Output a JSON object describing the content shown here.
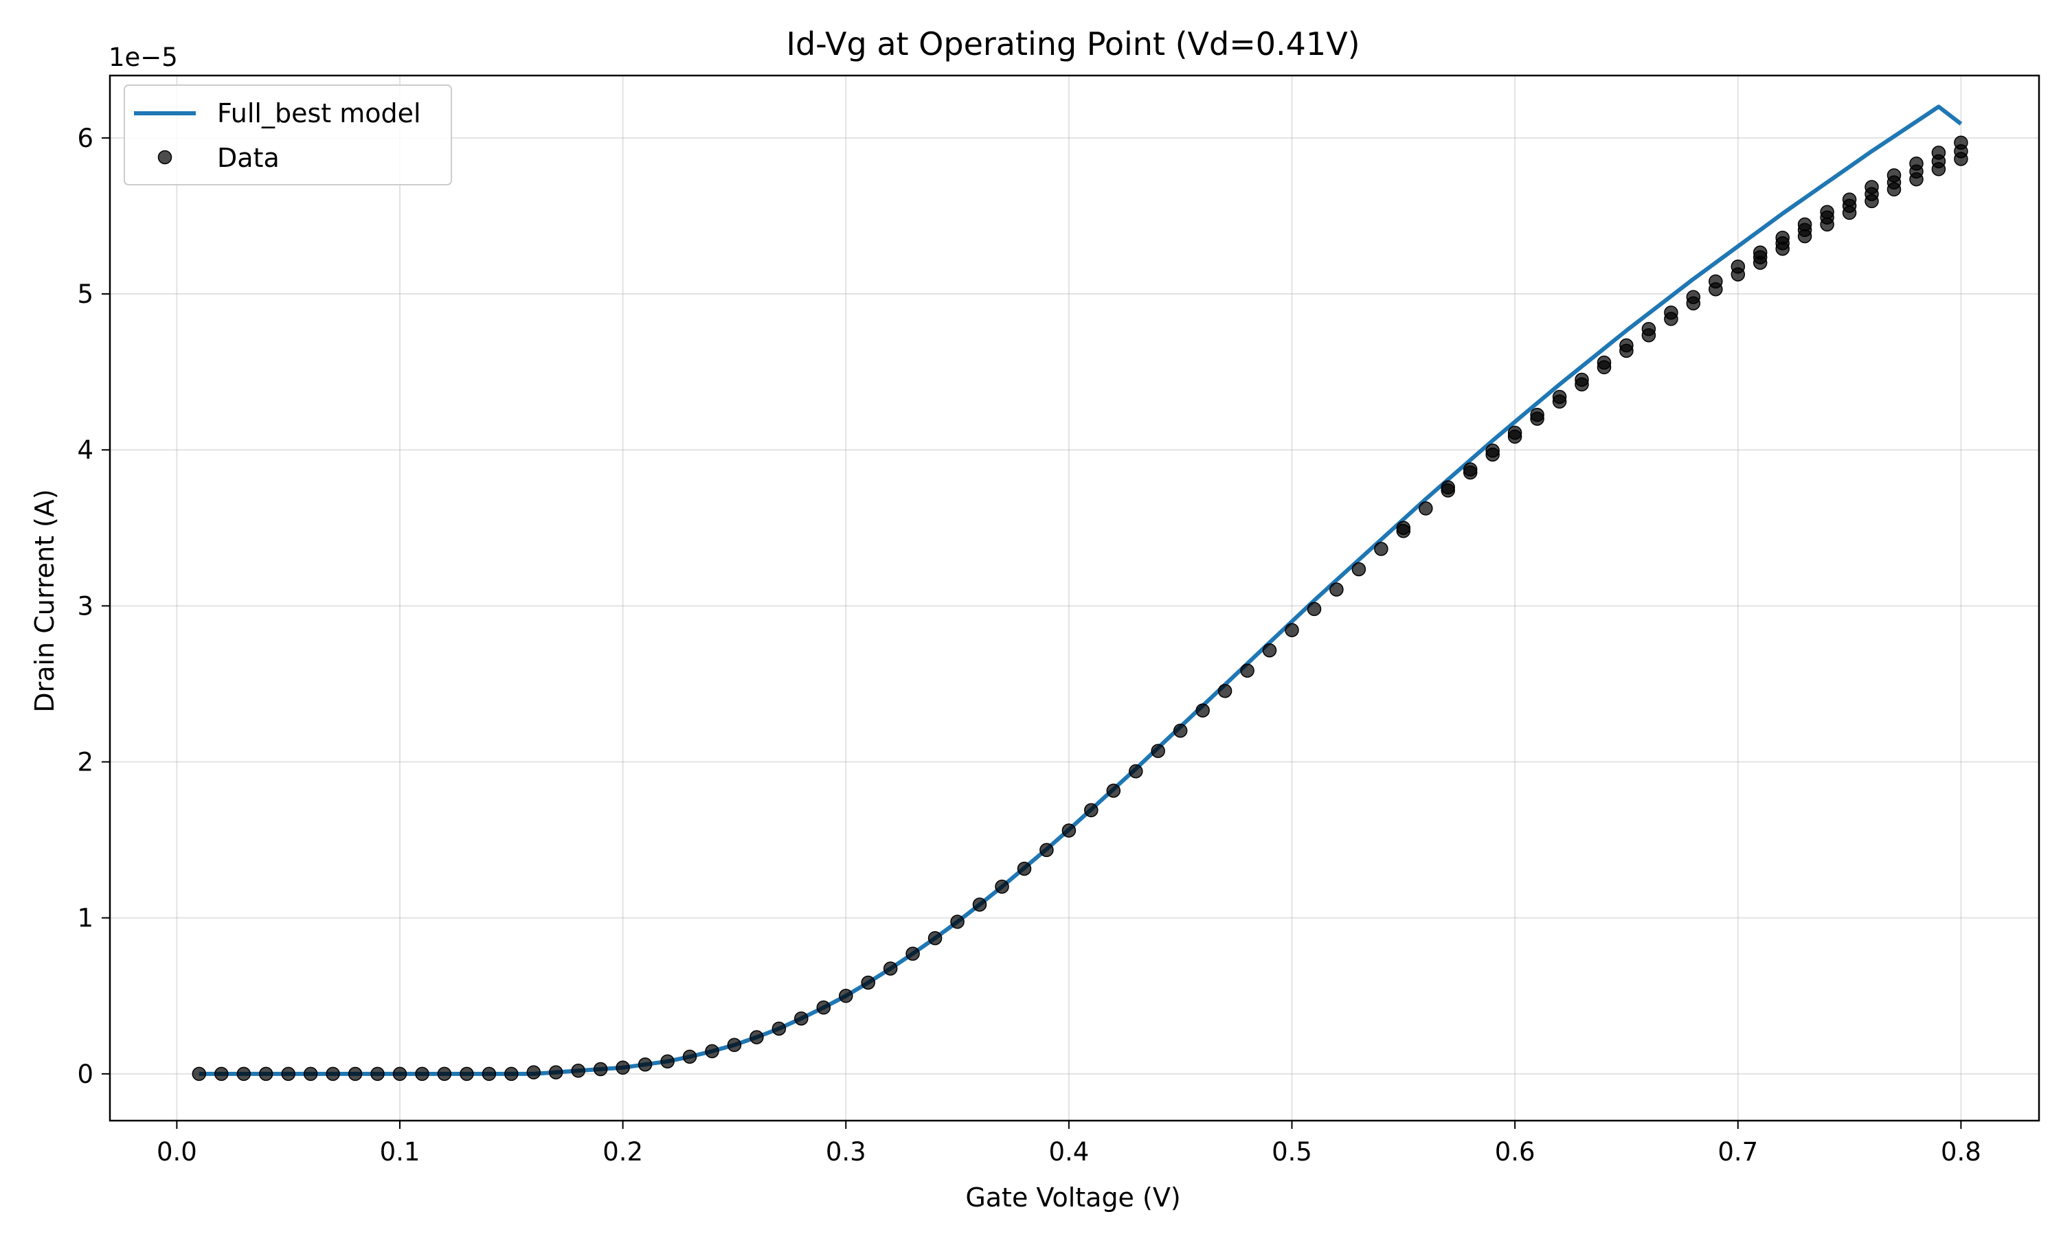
{
  "chart_data": {
    "type": "line",
    "title": "Id-Vg at Operating Point (Vd=0.41V)",
    "xlabel": "Gate Voltage (V)",
    "ylabel": "Drain Current (A)",
    "y_offset_text": "1e−5",
    "y_scale_factor": 1e-05,
    "xlim": [
      -0.03,
      0.835
    ],
    "ylim": [
      -3e-06,
      6.4e-05
    ],
    "xticks": [
      0.0,
      0.1,
      0.2,
      0.3,
      0.4,
      0.5,
      0.6,
      0.7,
      0.8
    ],
    "xtick_labels": [
      "0.0",
      "0.1",
      "0.2",
      "0.3",
      "0.4",
      "0.5",
      "0.6",
      "0.7",
      "0.8"
    ],
    "yticks": [
      0,
      1e-05,
      2e-05,
      3e-05,
      4e-05,
      5e-05,
      6e-05
    ],
    "ytick_labels": [
      "0",
      "1",
      "2",
      "3",
      "4",
      "5",
      "6"
    ],
    "grid": true,
    "legend": "upper-left",
    "series": [
      {
        "name": "Full_best model",
        "kind": "line",
        "color": "#1f77b4",
        "x": [
          0.01,
          0.02,
          0.03,
          0.04,
          0.05,
          0.06,
          0.07,
          0.08,
          0.09,
          0.1,
          0.11,
          0.12,
          0.13,
          0.14,
          0.15,
          0.16,
          0.17,
          0.18,
          0.19,
          0.2,
          0.21,
          0.22,
          0.23,
          0.24,
          0.25,
          0.26,
          0.27,
          0.28,
          0.29,
          0.3,
          0.31,
          0.32,
          0.33,
          0.34,
          0.35,
          0.36,
          0.37,
          0.38,
          0.39,
          0.4,
          0.41,
          0.42,
          0.43,
          0.44,
          0.45,
          0.46,
          0.47,
          0.48,
          0.49,
          0.5,
          0.51,
          0.52,
          0.53,
          0.54,
          0.55,
          0.56,
          0.57,
          0.58,
          0.59,
          0.6,
          0.61,
          0.62,
          0.63,
          0.64,
          0.65,
          0.66,
          0.67,
          0.68,
          0.69,
          0.7,
          0.71,
          0.72,
          0.73,
          0.74,
          0.75,
          0.76,
          0.77,
          0.78,
          0.79,
          0.8
        ],
        "y": [
          0.0,
          0.0,
          0.0,
          0.0,
          0.0,
          0.0,
          0.0,
          0.0,
          0.0,
          0.0,
          0.0,
          0.0,
          0.0,
          0.0,
          0.0,
          0.0,
          1e-07,
          2e-07,
          3e-07,
          4e-07,
          6e-07,
          8e-07,
          1.1e-06,
          1.45e-06,
          1.85e-06,
          2.35e-06,
          2.9e-06,
          3.55e-06,
          4.25e-06,
          5e-06,
          5.85e-06,
          6.75e-06,
          7.7e-06,
          8.7e-06,
          9.75e-06,
          1.085e-05,
          1.2e-05,
          1.32e-05,
          1.44e-05,
          1.565e-05,
          1.695e-05,
          1.825e-05,
          1.955e-05,
          2.09e-05,
          2.225e-05,
          2.36e-05,
          2.495e-05,
          2.63e-05,
          2.765e-05,
          2.9e-05,
          3.035e-05,
          3.165e-05,
          3.295e-05,
          3.425e-05,
          3.555e-05,
          3.685e-05,
          3.81e-05,
          3.935e-05,
          4.06e-05,
          4.18e-05,
          4.3e-05,
          4.42e-05,
          4.535e-05,
          4.65e-05,
          4.765e-05,
          4.875e-05,
          4.985e-05,
          5.095e-05,
          5.2e-05,
          5.305e-05,
          5.41e-05,
          5.515e-05,
          5.615e-05,
          5.715e-05,
          5.815e-05,
          5.915e-05,
          6.01e-05,
          6.105e-05,
          6.2e-05,
          6.09e-05
        ]
      },
      {
        "name": "Data",
        "kind": "scatter",
        "color": "#000000",
        "x": [
          0.01,
          0.02,
          0.03,
          0.04,
          0.05,
          0.06,
          0.07,
          0.08,
          0.09,
          0.1,
          0.11,
          0.12,
          0.13,
          0.14,
          0.15,
          0.16,
          0.17,
          0.18,
          0.19,
          0.2,
          0.21,
          0.22,
          0.23,
          0.24,
          0.25,
          0.26,
          0.27,
          0.28,
          0.29,
          0.3,
          0.31,
          0.32,
          0.33,
          0.34,
          0.35,
          0.36,
          0.37,
          0.38,
          0.39,
          0.4,
          0.41,
          0.42,
          0.43,
          0.44,
          0.45,
          0.46,
          0.47,
          0.48,
          0.49,
          0.5,
          0.51,
          0.52,
          0.53,
          0.54,
          0.55,
          0.55,
          0.56,
          0.57,
          0.57,
          0.58,
          0.58,
          0.59,
          0.59,
          0.6,
          0.6,
          0.61,
          0.61,
          0.62,
          0.62,
          0.63,
          0.63,
          0.64,
          0.64,
          0.65,
          0.65,
          0.66,
          0.66,
          0.67,
          0.67,
          0.68,
          0.68,
          0.69,
          0.69,
          0.7,
          0.7,
          0.71,
          0.71,
          0.71,
          0.72,
          0.72,
          0.72,
          0.73,
          0.73,
          0.73,
          0.74,
          0.74,
          0.74,
          0.75,
          0.75,
          0.75,
          0.76,
          0.76,
          0.76,
          0.77,
          0.77,
          0.77,
          0.78,
          0.78,
          0.78,
          0.79,
          0.79,
          0.79,
          0.8,
          0.8,
          0.8
        ],
        "y": [
          0.0,
          0.0,
          0.0,
          0.0,
          0.0,
          0.0,
          0.0,
          0.0,
          0.0,
          0.0,
          0.0,
          0.0,
          0.0,
          0.0,
          0.0,
          1e-07,
          1e-07,
          2e-07,
          3e-07,
          4e-07,
          6e-07,
          8e-07,
          1.1e-06,
          1.45e-06,
          1.85e-06,
          2.35e-06,
          2.9e-06,
          3.55e-06,
          4.25e-06,
          5e-06,
          5.85e-06,
          6.75e-06,
          7.7e-06,
          8.7e-06,
          9.75e-06,
          1.085e-05,
          1.2e-05,
          1.315e-05,
          1.435e-05,
          1.56e-05,
          1.69e-05,
          1.815e-05,
          1.94e-05,
          2.07e-05,
          2.2e-05,
          2.33e-05,
          2.455e-05,
          2.585e-05,
          2.715e-05,
          2.845e-05,
          2.98e-05,
          3.105e-05,
          3.235e-05,
          3.365e-05,
          3.48e-05,
          3.5e-05,
          3.625e-05,
          3.74e-05,
          3.76e-05,
          3.855e-05,
          3.875e-05,
          3.97e-05,
          3.995e-05,
          4.085e-05,
          4.11e-05,
          4.2e-05,
          4.225e-05,
          4.31e-05,
          4.34e-05,
          4.42e-05,
          4.45e-05,
          4.53e-05,
          4.56e-05,
          4.635e-05,
          4.67e-05,
          4.735e-05,
          4.775e-05,
          4.84e-05,
          4.88e-05,
          4.94e-05,
          4.98e-05,
          5.03e-05,
          5.08e-05,
          5.125e-05,
          5.175e-05,
          5.2e-05,
          5.235e-05,
          5.265e-05,
          5.29e-05,
          5.325e-05,
          5.36e-05,
          5.37e-05,
          5.41e-05,
          5.445e-05,
          5.445e-05,
          5.49e-05,
          5.525e-05,
          5.52e-05,
          5.565e-05,
          5.605e-05,
          5.595e-05,
          5.64e-05,
          5.685e-05,
          5.67e-05,
          5.715e-05,
          5.76e-05,
          5.735e-05,
          5.785e-05,
          5.835e-05,
          5.8e-05,
          5.85e-05,
          5.905e-05,
          5.865e-05,
          5.915e-05,
          5.97e-05
        ]
      }
    ]
  }
}
